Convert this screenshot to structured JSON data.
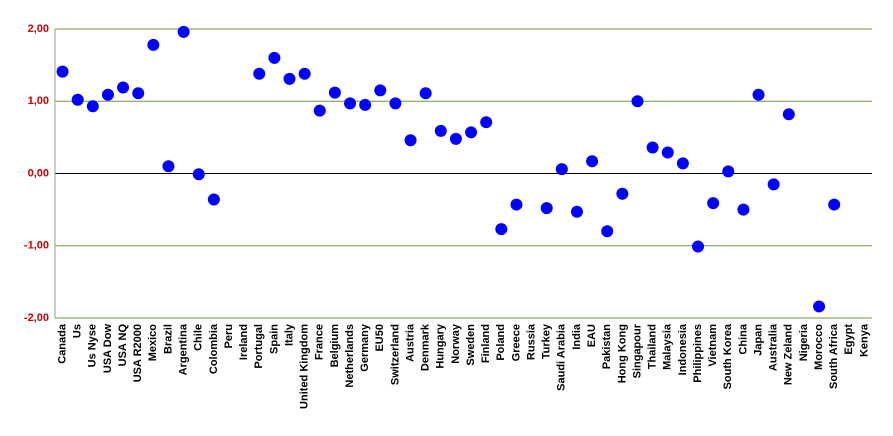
{
  "chart_data": {
    "type": "scatter",
    "categories": [
      "Canada",
      "Us",
      "Us Nyse",
      "USA Dow",
      "USA NQ",
      "USA R2000",
      "Mexico",
      "Brazil",
      "Argentina",
      "Chile",
      "Colombia",
      "Peru",
      "Ireland",
      "Portugal",
      "Spain",
      "Italy",
      "United Kingdom",
      "France",
      "Belgium",
      "Netherlands",
      "Germany",
      "EU50",
      "Switzerland",
      "Austria",
      "Denmark",
      "Hungary",
      "Norway",
      "Sweden",
      "Finland",
      "Poland",
      "Greece",
      "Russia",
      "Turkey",
      "Saudi Arabia",
      "India",
      "EAU",
      "Pakistan",
      "Hong Kong",
      "Singapour",
      "Thailand",
      "Malaysia",
      "Indonesia",
      "Philippines",
      "Vietnam",
      "South Korea",
      "China",
      "Japan",
      "Australia",
      "New Zeland",
      "Nigeria",
      "Morocco",
      "South Africa",
      "Egypt",
      "Kenya"
    ],
    "values": [
      1.41,
      1.02,
      0.93,
      1.09,
      1.19,
      1.11,
      1.78,
      0.1,
      1.96,
      -0.01,
      -0.36,
      null,
      null,
      1.38,
      1.6,
      1.31,
      1.38,
      0.87,
      1.12,
      0.97,
      0.95,
      1.15,
      0.97,
      0.46,
      1.11,
      0.59,
      0.48,
      0.57,
      0.71,
      -0.77,
      -0.43,
      null,
      -0.48,
      0.06,
      -0.53,
      0.17,
      -0.8,
      -0.28,
      1.0,
      0.36,
      0.29,
      0.14,
      -1.01,
      -0.41,
      0.03,
      -0.5,
      1.09,
      -0.15,
      0.82,
      null,
      -1.84,
      -0.43,
      null,
      null
    ],
    "color": "#0000ff",
    "ylim": [
      -2,
      2
    ],
    "yticks": [
      {
        "value": -2,
        "label": "-2,00"
      },
      {
        "value": -1,
        "label": "-1,00"
      },
      {
        "value": 0,
        "label": "0,00"
      },
      {
        "value": 1,
        "label": "1,00"
      },
      {
        "value": 2,
        "label": "2,00"
      }
    ],
    "grid": true
  }
}
